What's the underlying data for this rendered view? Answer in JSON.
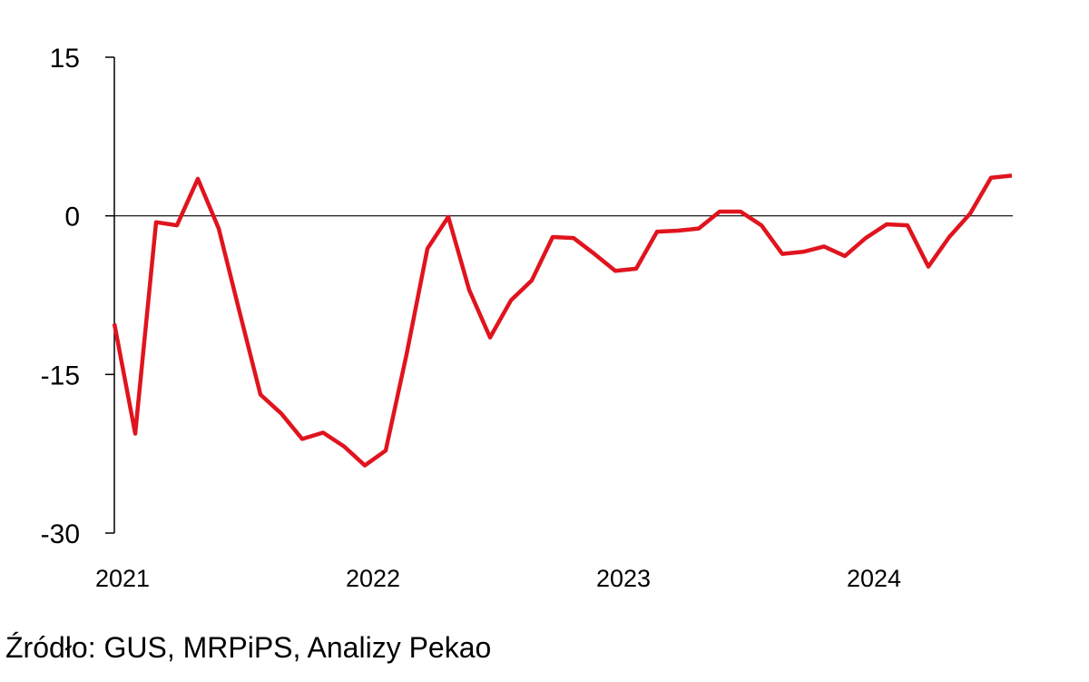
{
  "chart_data": {
    "type": "line",
    "title": "",
    "xlabel": "",
    "ylabel": "",
    "ylim": [
      -30,
      15
    ],
    "yticks": [
      15,
      0,
      -15,
      -30
    ],
    "ytick_labels": [
      "15",
      "0",
      "-15",
      "-30"
    ],
    "xlim": [
      "2021-01",
      "2024-08"
    ],
    "xticks": [
      "2021-01",
      "2022-01",
      "2023-01",
      "2024-01"
    ],
    "xtick_labels": [
      "2021",
      "2022",
      "2023",
      "2024"
    ],
    "zero_line": true,
    "grid": false,
    "legend": "none",
    "series": [
      {
        "color": "#e0141e",
        "x": [
          "2021-01",
          "2021-02",
          "2021-03",
          "2021-04",
          "2021-05",
          "2021-06",
          "2021-07",
          "2021-08",
          "2021-09",
          "2021-10",
          "2021-11",
          "2021-12",
          "2022-01",
          "2022-02",
          "2022-03",
          "2022-04",
          "2022-05",
          "2022-06",
          "2022-07",
          "2022-08",
          "2022-09",
          "2022-10",
          "2022-11",
          "2022-12",
          "2023-01",
          "2023-02",
          "2023-03",
          "2023-04",
          "2023-05",
          "2023-06",
          "2023-07",
          "2023-08",
          "2023-09",
          "2023-10",
          "2023-11",
          "2023-12",
          "2024-01",
          "2024-02",
          "2024-03",
          "2024-04",
          "2024-05",
          "2024-06",
          "2024-07",
          "2024-08"
        ],
        "values": [
          -10.2,
          -20.6,
          -0.6,
          -0.9,
          3.5,
          -1.2,
          -9.1,
          -16.9,
          -18.7,
          -21.1,
          -20.5,
          -21.8,
          -23.6,
          -22.2,
          -13.1,
          -3.1,
          -0.1,
          -7.0,
          -11.5,
          -8.0,
          -6.1,
          -2.0,
          -2.1,
          -3.6,
          -5.2,
          -5.0,
          -1.5,
          -1.4,
          -1.2,
          0.4,
          0.4,
          -0.9,
          -3.6,
          -3.4,
          -2.9,
          -3.8,
          -2.1,
          -0.8,
          -0.9,
          -4.8,
          -2.0,
          0.2,
          3.6,
          3.8
        ]
      }
    ]
  },
  "footer": {
    "source": "Źródło: GUS, MRPiPS, Analizy Pekao"
  }
}
